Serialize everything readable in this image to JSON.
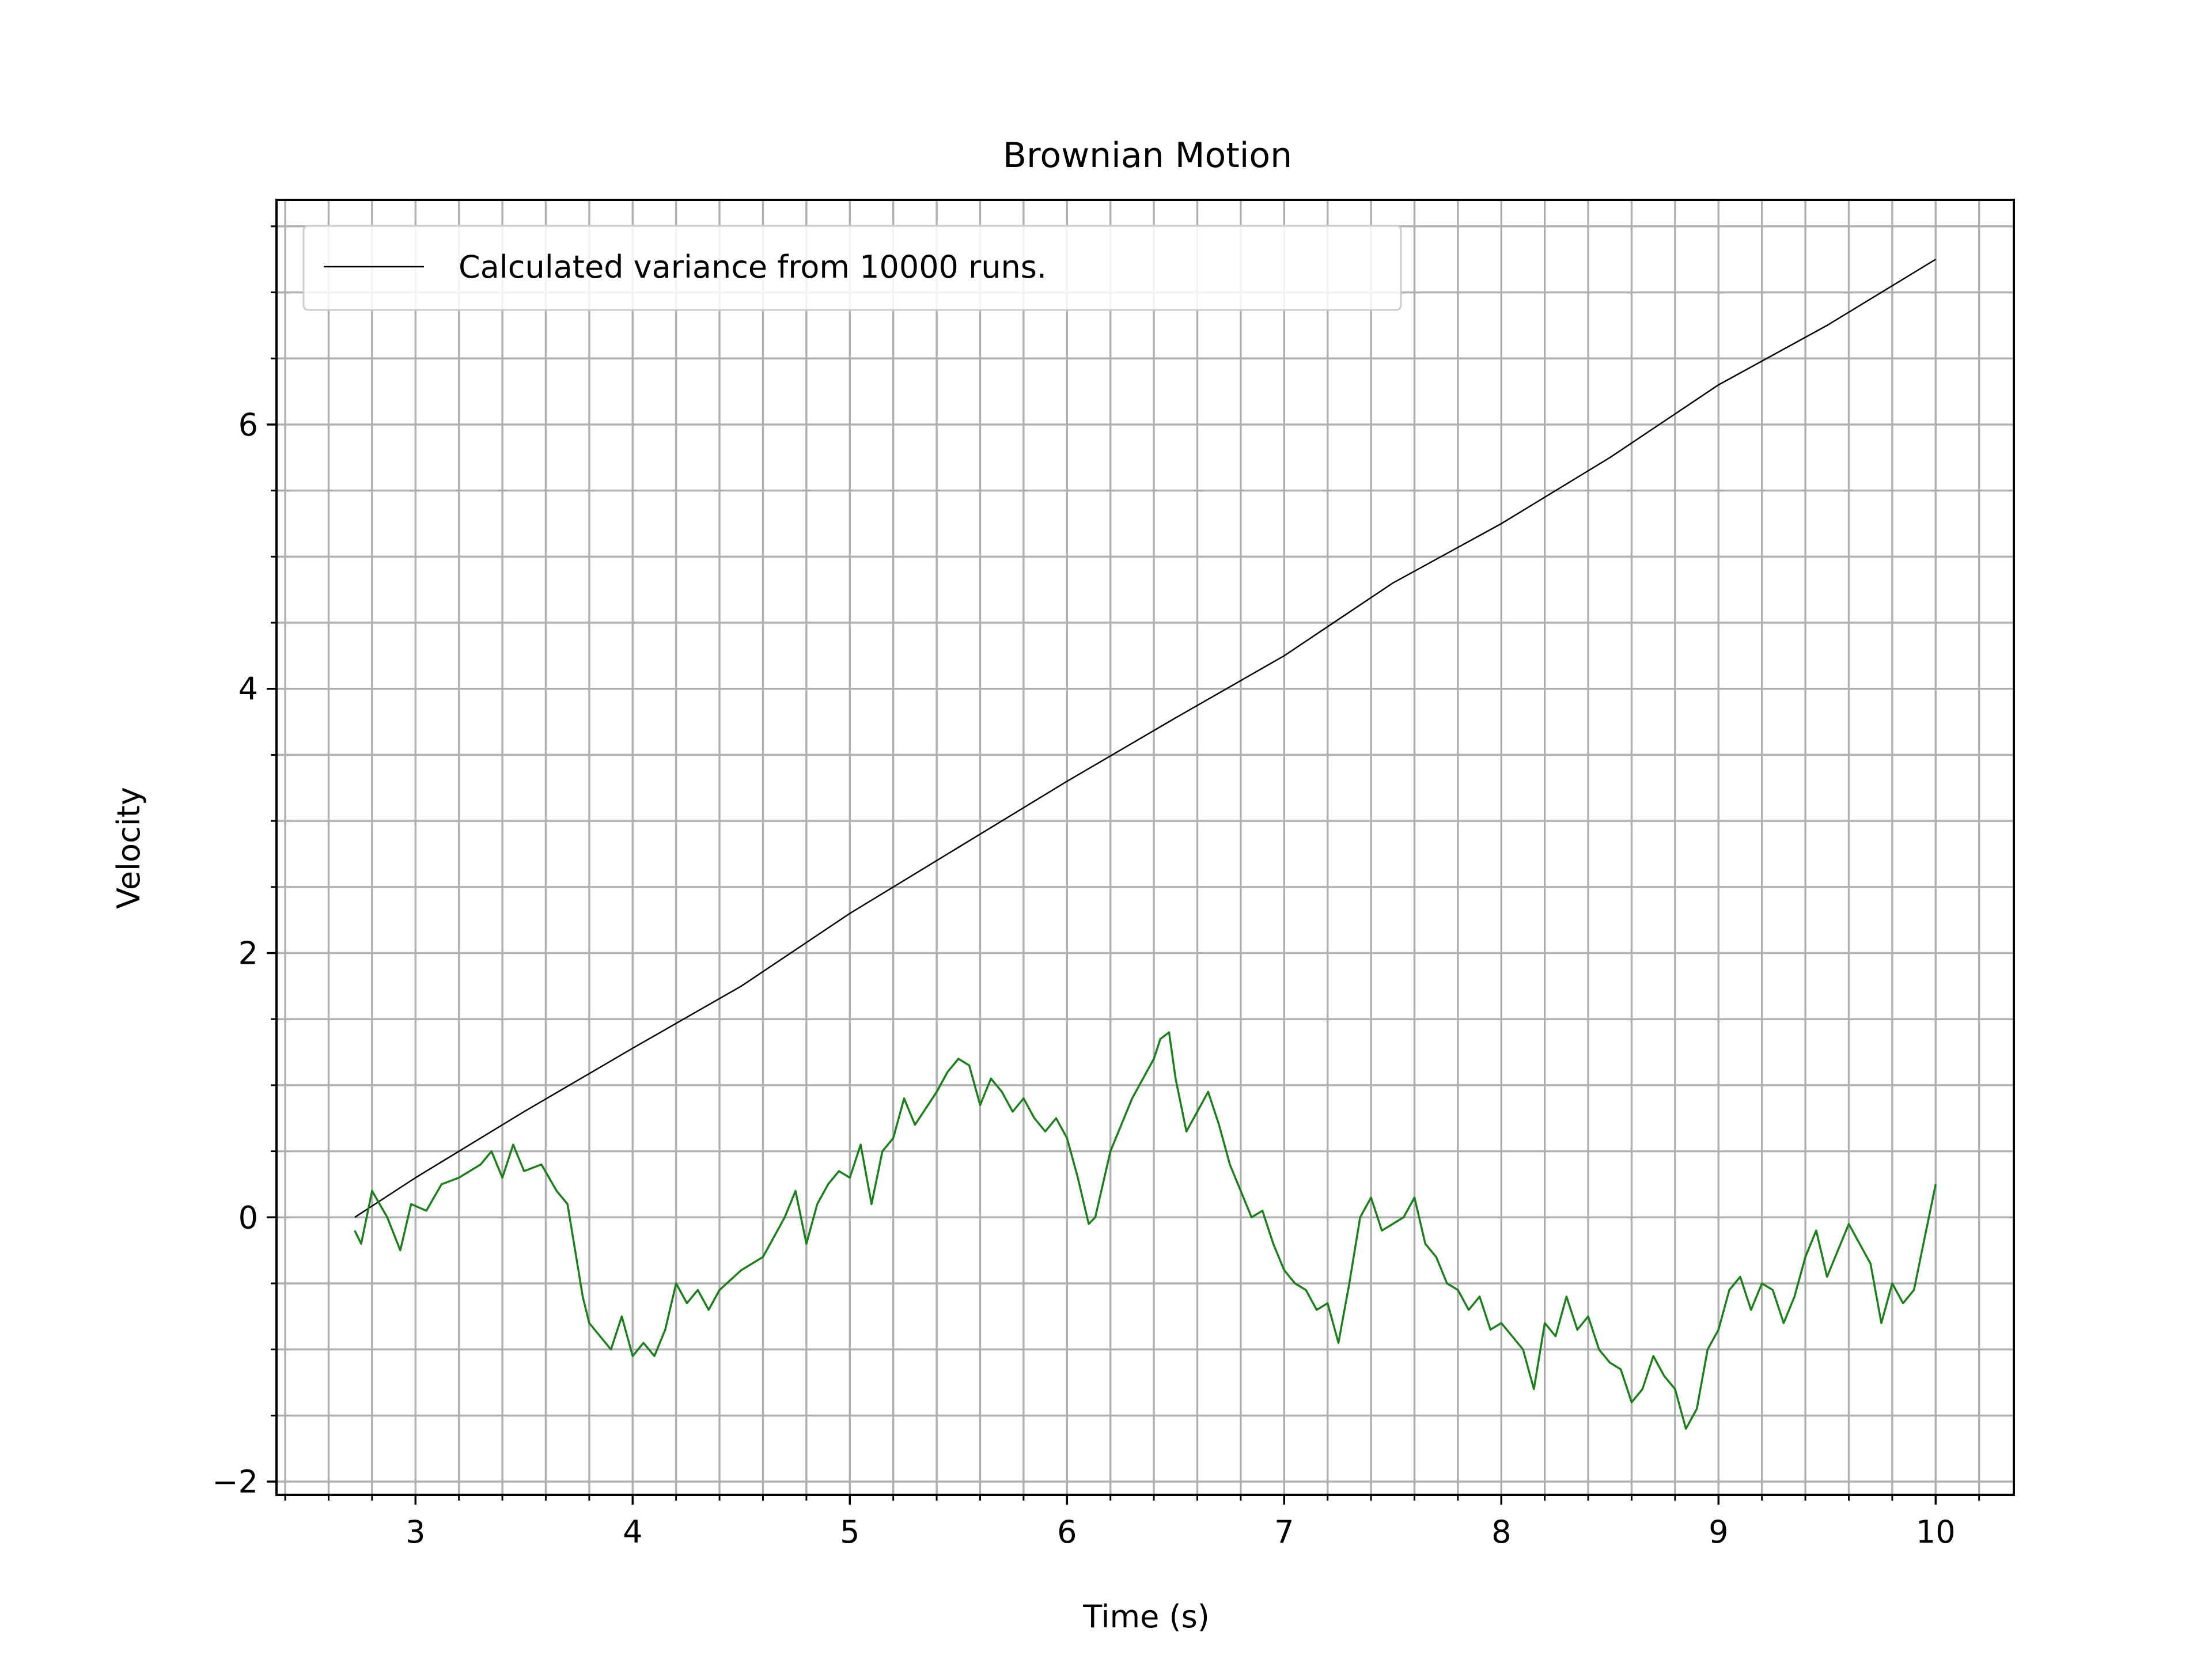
{
  "chart_data": {
    "type": "line",
    "title": "Brownian Motion",
    "xlabel": "Time (s)",
    "ylabel": "Velocity",
    "xlim": [
      2.36,
      10.36
    ],
    "ylim": [
      -2.1,
      7.7
    ],
    "xticks": [
      3,
      4,
      5,
      6,
      7,
      8,
      9,
      10
    ],
    "xtick_labels": [
      "3",
      "4",
      "5",
      "6",
      "7",
      "8",
      "9",
      "10"
    ],
    "yticks": [
      -2,
      0,
      2,
      4,
      6
    ],
    "ytick_labels": [
      "−2",
      "0",
      "2",
      "4",
      "6"
    ],
    "grid": true,
    "grid_minor": true,
    "legend_position": "upper-left",
    "series": [
      {
        "name": "Calculated variance from 10000 runs.",
        "color": "#000000",
        "in_legend": true,
        "x": [
          2.72,
          3.0,
          3.5,
          4.0,
          4.5,
          5.0,
          5.5,
          6.0,
          6.5,
          7.0,
          7.5,
          8.0,
          8.5,
          9.0,
          9.5,
          10.0
        ],
        "y": [
          0.0,
          0.3,
          0.8,
          1.28,
          1.75,
          2.3,
          2.8,
          3.3,
          3.78,
          4.25,
          4.8,
          5.25,
          5.75,
          6.3,
          6.75,
          7.25
        ]
      },
      {
        "color": "#1a801a",
        "in_legend": false,
        "x": [
          2.72,
          2.75,
          2.8,
          2.87,
          2.93,
          2.98,
          3.05,
          3.12,
          3.2,
          3.3,
          3.35,
          3.4,
          3.45,
          3.5,
          3.58,
          3.65,
          3.7,
          3.74,
          3.77,
          3.8,
          3.85,
          3.9,
          3.95,
          4.0,
          4.05,
          4.1,
          4.15,
          4.2,
          4.25,
          4.3,
          4.35,
          4.4,
          4.5,
          4.6,
          4.7,
          4.75,
          4.8,
          4.85,
          4.9,
          4.95,
          5.0,
          5.05,
          5.1,
          5.15,
          5.2,
          5.25,
          5.3,
          5.4,
          5.45,
          5.5,
          5.55,
          5.6,
          5.65,
          5.7,
          5.75,
          5.8,
          5.85,
          5.9,
          5.95,
          6.0,
          6.05,
          6.1,
          6.13,
          6.2,
          6.3,
          6.4,
          6.43,
          6.47,
          6.5,
          6.55,
          6.6,
          6.65,
          6.7,
          6.75,
          6.8,
          6.85,
          6.9,
          6.95,
          7.0,
          7.05,
          7.1,
          7.15,
          7.2,
          7.25,
          7.3,
          7.35,
          7.4,
          7.45,
          7.5,
          7.55,
          7.6,
          7.65,
          7.7,
          7.75,
          7.8,
          7.85,
          7.9,
          7.95,
          8.0,
          8.05,
          8.1,
          8.15,
          8.2,
          8.25,
          8.3,
          8.35,
          8.4,
          8.45,
          8.5,
          8.55,
          8.6,
          8.65,
          8.7,
          8.75,
          8.8,
          8.85,
          8.9,
          8.95,
          9.0,
          9.05,
          9.1,
          9.15,
          9.2,
          9.25,
          9.3,
          9.35,
          9.4,
          9.45,
          9.5,
          9.55,
          9.6,
          9.65,
          9.7,
          9.75,
          9.8,
          9.85,
          9.9,
          9.95,
          10.0
        ],
        "y": [
          -0.1,
          -0.2,
          0.2,
          0.0,
          -0.25,
          0.1,
          0.05,
          0.25,
          0.3,
          0.4,
          0.5,
          0.3,
          0.55,
          0.35,
          0.4,
          0.2,
          0.1,
          -0.3,
          -0.6,
          -0.8,
          -0.9,
          -1.0,
          -0.75,
          -1.05,
          -0.95,
          -1.05,
          -0.85,
          -0.5,
          -0.65,
          -0.55,
          -0.7,
          -0.55,
          -0.4,
          -0.3,
          0.0,
          0.2,
          -0.2,
          0.1,
          0.25,
          0.35,
          0.3,
          0.55,
          0.1,
          0.5,
          0.6,
          0.9,
          0.7,
          0.95,
          1.1,
          1.2,
          1.15,
          0.85,
          1.05,
          0.95,
          0.8,
          0.9,
          0.75,
          0.65,
          0.75,
          0.6,
          0.3,
          -0.05,
          0.0,
          0.5,
          0.9,
          1.2,
          1.35,
          1.4,
          1.05,
          0.65,
          0.8,
          0.95,
          0.7,
          0.4,
          0.2,
          0.0,
          0.05,
          -0.2,
          -0.4,
          -0.5,
          -0.55,
          -0.7,
          -0.65,
          -0.95,
          -0.5,
          0.0,
          0.15,
          -0.1,
          -0.05,
          0.0,
          0.15,
          -0.2,
          -0.3,
          -0.5,
          -0.55,
          -0.7,
          -0.6,
          -0.85,
          -0.8,
          -0.9,
          -1.0,
          -1.3,
          -0.8,
          -0.9,
          -0.6,
          -0.85,
          -0.75,
          -1.0,
          -1.1,
          -1.15,
          -1.4,
          -1.3,
          -1.05,
          -1.2,
          -1.3,
          -1.6,
          -1.45,
          -1.0,
          -0.85,
          -0.55,
          -0.45,
          -0.7,
          -0.5,
          -0.55,
          -0.8,
          -0.6,
          -0.3,
          -0.1,
          -0.45,
          -0.25,
          -0.05,
          -0.2,
          -0.35,
          -0.8,
          -0.5,
          -0.65,
          -0.55,
          -0.15,
          0.25
        ]
      }
    ]
  }
}
